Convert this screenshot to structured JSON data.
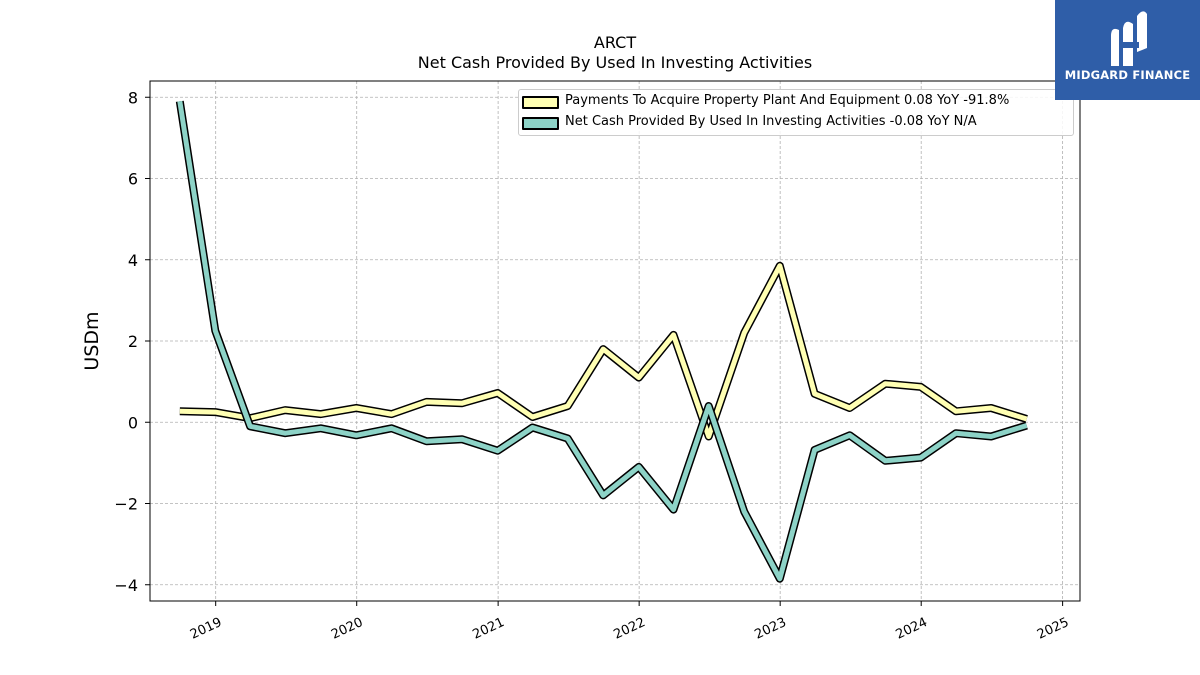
{
  "logo": {
    "text": "MIDGARD FINANCE"
  },
  "chart_data": {
    "type": "line",
    "title": "ARCT",
    "subtitle": "Net Cash Provided By Used In Investing Activities",
    "ylabel": "USDm",
    "xlabel": "",
    "ylim": [
      -4.4,
      8.4
    ],
    "yticks": [
      -4,
      -2,
      0,
      2,
      4,
      6,
      8
    ],
    "ytick_labels": [
      "−4",
      "−2",
      "0",
      "2",
      "4",
      "6",
      "8"
    ],
    "xlim": [
      "2018-07-15",
      "2025-02-15"
    ],
    "xticks": [
      "2019-01-01",
      "2020-01-01",
      "2021-01-01",
      "2022-01-01",
      "2023-01-01",
      "2024-01-01",
      "2025-01-01"
    ],
    "xtick_labels": [
      "2019",
      "2020",
      "2021",
      "2022",
      "2023",
      "2024",
      "2025"
    ],
    "grid": true,
    "legend_position": "top-right",
    "x": [
      "2018-09-30",
      "2018-12-31",
      "2019-03-31",
      "2019-06-30",
      "2019-09-30",
      "2019-12-31",
      "2020-03-31",
      "2020-06-30",
      "2020-09-30",
      "2020-12-31",
      "2021-03-31",
      "2021-06-30",
      "2021-09-30",
      "2021-12-31",
      "2022-03-31",
      "2022-06-30",
      "2022-09-30",
      "2022-12-31",
      "2023-03-31",
      "2023-06-30",
      "2023-09-30",
      "2023-12-31",
      "2024-03-31",
      "2024-06-30",
      "2024-09-30"
    ],
    "series": [
      {
        "name": "Payments To Acquire Property Plant And Equipment",
        "legend": "Payments To Acquire Property Plant And Equipment  0.08 YoY -91.8%",
        "color": "#ffffb3",
        "values": [
          0.27,
          0.25,
          0.1,
          0.3,
          0.2,
          0.35,
          0.2,
          0.5,
          0.47,
          0.72,
          0.13,
          0.4,
          1.8,
          1.1,
          2.15,
          -0.35,
          2.2,
          3.85,
          0.7,
          0.35,
          0.95,
          0.87,
          0.27,
          0.35,
          0.08
        ]
      },
      {
        "name": "Net Cash Provided By Used In Investing Activities",
        "legend": "Net Cash Provided By Used In Investing Activities  -0.08 YoY N/A",
        "color": "#8dd3c7",
        "values": [
          7.9,
          2.25,
          -0.1,
          -0.27,
          -0.15,
          -0.32,
          -0.15,
          -0.47,
          -0.42,
          -0.7,
          -0.13,
          -0.4,
          -1.8,
          -1.1,
          -2.15,
          0.4,
          -2.2,
          -3.85,
          -0.68,
          -0.32,
          -0.95,
          -0.87,
          -0.27,
          -0.35,
          -0.08
        ]
      }
    ]
  }
}
